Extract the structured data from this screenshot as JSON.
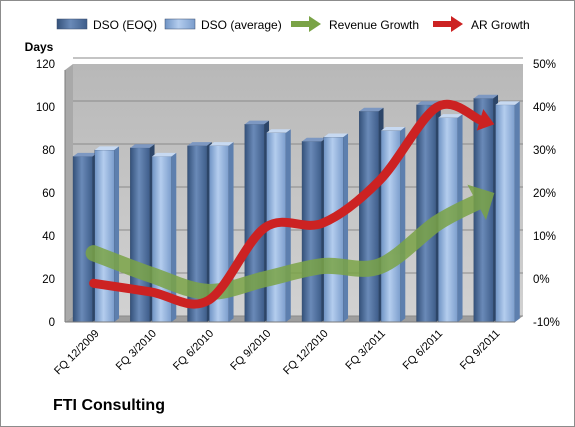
{
  "footer": {
    "title": "FTI Consulting"
  },
  "colors": {
    "dso_eoq": "#4f6f9b",
    "dso_average": "#93b3dd",
    "revenue_growth": "#7aa346",
    "ar_growth": "#cc2222",
    "plot_background": "#c0c0c0"
  },
  "chart_data": {
    "type": "bar",
    "y_axis_left": {
      "title": "Days",
      "range": [
        0,
        120
      ],
      "ticks": [
        0,
        20,
        40,
        60,
        80,
        100,
        120
      ]
    },
    "y_axis_right": {
      "range": [
        -10,
        50
      ],
      "ticks": [
        "-10%",
        "0%",
        "10%",
        "20%",
        "30%",
        "40%",
        "50%"
      ]
    },
    "grid": true,
    "legend_position": "top",
    "categories": [
      "FQ 12/2009",
      "FQ 3/2010",
      "FQ 6/2010",
      "FQ 9/2010",
      "FQ 12/2010",
      "FQ 3/2011",
      "FQ 6/2011",
      "FQ 9/2011"
    ],
    "series": [
      {
        "name": "DSO (EOQ)",
        "type": "bar",
        "axis": "left",
        "values": [
          77,
          81,
          82,
          92,
          84,
          98,
          101,
          104
        ]
      },
      {
        "name": "DSO (average)",
        "type": "bar",
        "axis": "left",
        "values": [
          80,
          77,
          82,
          88,
          86,
          89,
          95,
          101
        ]
      },
      {
        "name": "Revenue Growth",
        "type": "line",
        "axis": "right",
        "values": [
          6,
          1,
          -3,
          0,
          3,
          3,
          13,
          20
        ]
      },
      {
        "name": "AR Growth",
        "type": "line",
        "axis": "right",
        "values": [
          -1,
          -3,
          -5,
          12,
          13,
          23,
          40,
          36
        ]
      }
    ]
  }
}
